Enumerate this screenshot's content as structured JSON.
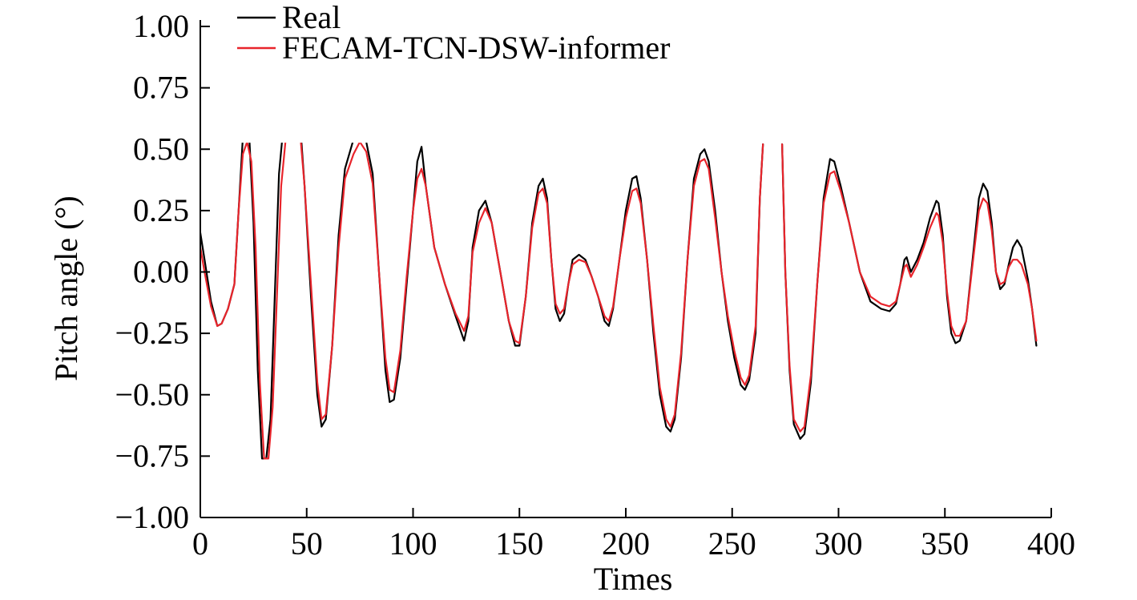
{
  "chart_data": {
    "type": "line",
    "title": "",
    "xlabel": "Times",
    "ylabel": "Pitch angle (°)",
    "xlim": [
      0,
      400
    ],
    "ylim": [
      -1.0,
      1.0
    ],
    "xticks": [
      0,
      50,
      100,
      150,
      200,
      250,
      300,
      350,
      400
    ],
    "xtick_labels": [
      "0",
      "50",
      "100",
      "150",
      "200",
      "250",
      "300",
      "350",
      "400"
    ],
    "yticks": [
      1.0,
      0.75,
      0.5,
      0.25,
      0.0,
      -0.25,
      -0.5,
      -0.75,
      -1.0
    ],
    "ytick_labels": [
      "1.00",
      "0.75",
      "0.50",
      "0.25",
      "0.00",
      "−0.25",
      "−0.50",
      "−0.75",
      "−1.00"
    ],
    "grid": false,
    "legend_position": "top-left",
    "series": [
      {
        "name": "Real",
        "color": "#000000",
        "points": [
          [
            0,
            0.16
          ],
          [
            2,
            0.05
          ],
          [
            5,
            -0.12
          ],
          [
            8,
            -0.22
          ],
          [
            10,
            -0.21
          ],
          [
            13,
            -0.15
          ],
          [
            16,
            -0.05
          ],
          [
            18,
            0.25
          ],
          [
            20,
            0.55
          ],
          [
            21,
            0.61
          ],
          [
            23,
            0.55
          ],
          [
            25,
            0.2
          ],
          [
            27,
            -0.4
          ],
          [
            29,
            -0.76
          ],
          [
            31,
            -0.76
          ],
          [
            33,
            -0.6
          ],
          [
            35,
            -0.1
          ],
          [
            37,
            0.4
          ],
          [
            40,
            0.68
          ],
          [
            43,
            0.8
          ],
          [
            44,
            0.81
          ],
          [
            46,
            0.72
          ],
          [
            49,
            0.35
          ],
          [
            52,
            -0.1
          ],
          [
            55,
            -0.5
          ],
          [
            57,
            -0.63
          ],
          [
            59,
            -0.6
          ],
          [
            62,
            -0.3
          ],
          [
            65,
            0.15
          ],
          [
            68,
            0.42
          ],
          [
            72,
            0.54
          ],
          [
            75,
            0.57
          ],
          [
            78,
            0.53
          ],
          [
            81,
            0.4
          ],
          [
            84,
            0.0
          ],
          [
            87,
            -0.4
          ],
          [
            89,
            -0.53
          ],
          [
            91,
            -0.52
          ],
          [
            94,
            -0.35
          ],
          [
            97,
            -0.05
          ],
          [
            100,
            0.25
          ],
          [
            102,
            0.45
          ],
          [
            104,
            0.51
          ],
          [
            106,
            0.35
          ],
          [
            110,
            0.1
          ],
          [
            115,
            -0.05
          ],
          [
            120,
            -0.18
          ],
          [
            124,
            -0.28
          ],
          [
            126,
            -0.2
          ],
          [
            128,
            0.1
          ],
          [
            131,
            0.25
          ],
          [
            134,
            0.29
          ],
          [
            137,
            0.2
          ],
          [
            141,
            0.0
          ],
          [
            145,
            -0.2
          ],
          [
            148,
            -0.3
          ],
          [
            150,
            -0.3
          ],
          [
            153,
            -0.1
          ],
          [
            156,
            0.2
          ],
          [
            159,
            0.35
          ],
          [
            161,
            0.38
          ],
          [
            163,
            0.3
          ],
          [
            165,
            0.05
          ],
          [
            167,
            -0.15
          ],
          [
            169,
            -0.2
          ],
          [
            171,
            -0.17
          ],
          [
            173,
            -0.05
          ],
          [
            175,
            0.05
          ],
          [
            178,
            0.07
          ],
          [
            181,
            0.05
          ],
          [
            184,
            -0.02
          ],
          [
            187,
            -0.1
          ],
          [
            190,
            -0.2
          ],
          [
            192,
            -0.22
          ],
          [
            194,
            -0.15
          ],
          [
            197,
            0.05
          ],
          [
            200,
            0.25
          ],
          [
            203,
            0.38
          ],
          [
            205,
            0.39
          ],
          [
            207,
            0.3
          ],
          [
            210,
            0.05
          ],
          [
            213,
            -0.25
          ],
          [
            216,
            -0.5
          ],
          [
            219,
            -0.63
          ],
          [
            221,
            -0.65
          ],
          [
            223,
            -0.6
          ],
          [
            226,
            -0.35
          ],
          [
            229,
            0.05
          ],
          [
            232,
            0.38
          ],
          [
            235,
            0.48
          ],
          [
            237,
            0.5
          ],
          [
            239,
            0.45
          ],
          [
            242,
            0.25
          ],
          [
            245,
            0.0
          ],
          [
            248,
            -0.2
          ],
          [
            251,
            -0.35
          ],
          [
            254,
            -0.46
          ],
          [
            256,
            -0.48
          ],
          [
            258,
            -0.44
          ],
          [
            261,
            -0.25
          ],
          [
            263,
            0.3
          ],
          [
            264.5,
            0.52
          ]
        ]
      },
      {
        "name": "",
        "color": "#000000",
        "points": [
          [
            273.5,
            0.52
          ],
          [
            275,
            0.0
          ],
          [
            277,
            -0.4
          ],
          [
            279,
            -0.62
          ],
          [
            282,
            -0.68
          ],
          [
            284,
            -0.66
          ],
          [
            287,
            -0.45
          ],
          [
            290,
            -0.05
          ],
          [
            293,
            0.3
          ],
          [
            296,
            0.46
          ],
          [
            298,
            0.45
          ],
          [
            301,
            0.35
          ],
          [
            305,
            0.2
          ],
          [
            310,
            0.0
          ],
          [
            315,
            -0.12
          ],
          [
            320,
            -0.15
          ],
          [
            324,
            -0.16
          ],
          [
            327,
            -0.13
          ],
          [
            329,
            -0.05
          ],
          [
            331,
            0.05
          ],
          [
            332,
            0.06
          ],
          [
            334,
            0.0
          ],
          [
            337,
            0.05
          ],
          [
            340,
            0.12
          ],
          [
            343,
            0.22
          ],
          [
            346,
            0.29
          ],
          [
            347,
            0.28
          ],
          [
            349,
            0.15
          ],
          [
            351,
            -0.1
          ],
          [
            353,
            -0.25
          ],
          [
            355,
            -0.29
          ],
          [
            357,
            -0.28
          ],
          [
            360,
            -0.2
          ],
          [
            363,
            0.05
          ],
          [
            366,
            0.3
          ],
          [
            368,
            0.36
          ],
          [
            370,
            0.33
          ],
          [
            372,
            0.2
          ],
          [
            374,
            0.0
          ],
          [
            376,
            -0.07
          ],
          [
            378,
            -0.05
          ],
          [
            380,
            0.03
          ],
          [
            382,
            0.1
          ],
          [
            384,
            0.13
          ],
          [
            386,
            0.1
          ],
          [
            389,
            -0.03
          ],
          [
            391,
            -0.15
          ],
          [
            393,
            -0.3
          ]
        ]
      },
      {
        "name": "FECAM-TCN-DSW-informer",
        "color": "#e8242b",
        "points": [
          [
            0,
            0.1
          ],
          [
            2,
            0.0
          ],
          [
            5,
            -0.14
          ],
          [
            8,
            -0.22
          ],
          [
            10,
            -0.21
          ],
          [
            13,
            -0.15
          ],
          [
            16,
            -0.05
          ],
          [
            18,
            0.25
          ],
          [
            20,
            0.48
          ],
          [
            22,
            0.53
          ],
          [
            24,
            0.45
          ],
          [
            26,
            0.1
          ],
          [
            28,
            -0.45
          ],
          [
            30,
            -0.76
          ],
          [
            32,
            -0.76
          ],
          [
            34,
            -0.55
          ],
          [
            36,
            -0.1
          ],
          [
            38,
            0.35
          ],
          [
            41,
            0.62
          ],
          [
            44,
            0.71
          ],
          [
            46,
            0.66
          ],
          [
            49,
            0.35
          ],
          [
            52,
            -0.05
          ],
          [
            55,
            -0.45
          ],
          [
            57,
            -0.6
          ],
          [
            59,
            -0.58
          ],
          [
            62,
            -0.3
          ],
          [
            65,
            0.1
          ],
          [
            68,
            0.38
          ],
          [
            72,
            0.48
          ],
          [
            75,
            0.53
          ],
          [
            78,
            0.49
          ],
          [
            81,
            0.36
          ],
          [
            84,
            0.0
          ],
          [
            87,
            -0.35
          ],
          [
            89,
            -0.48
          ],
          [
            91,
            -0.49
          ],
          [
            94,
            -0.32
          ],
          [
            97,
            -0.02
          ],
          [
            100,
            0.25
          ],
          [
            102,
            0.38
          ],
          [
            104,
            0.42
          ],
          [
            106,
            0.35
          ],
          [
            110,
            0.1
          ],
          [
            115,
            -0.05
          ],
          [
            120,
            -0.17
          ],
          [
            124,
            -0.24
          ],
          [
            126,
            -0.18
          ],
          [
            128,
            0.08
          ],
          [
            131,
            0.2
          ],
          [
            134,
            0.26
          ],
          [
            137,
            0.2
          ],
          [
            141,
            0.0
          ],
          [
            145,
            -0.2
          ],
          [
            148,
            -0.28
          ],
          [
            150,
            -0.29
          ],
          [
            153,
            -0.1
          ],
          [
            156,
            0.18
          ],
          [
            159,
            0.32
          ],
          [
            161,
            0.34
          ],
          [
            163,
            0.28
          ],
          [
            165,
            0.05
          ],
          [
            167,
            -0.13
          ],
          [
            169,
            -0.17
          ],
          [
            171,
            -0.15
          ],
          [
            173,
            -0.05
          ],
          [
            175,
            0.03
          ],
          [
            178,
            0.05
          ],
          [
            181,
            0.04
          ],
          [
            184,
            -0.02
          ],
          [
            187,
            -0.1
          ],
          [
            190,
            -0.18
          ],
          [
            192,
            -0.2
          ],
          [
            194,
            -0.14
          ],
          [
            197,
            0.05
          ],
          [
            200,
            0.22
          ],
          [
            203,
            0.33
          ],
          [
            205,
            0.34
          ],
          [
            207,
            0.28
          ],
          [
            210,
            0.05
          ],
          [
            213,
            -0.22
          ],
          [
            216,
            -0.47
          ],
          [
            219,
            -0.6
          ],
          [
            221,
            -0.63
          ],
          [
            223,
            -0.58
          ],
          [
            226,
            -0.33
          ],
          [
            229,
            0.05
          ],
          [
            232,
            0.35
          ],
          [
            235,
            0.45
          ],
          [
            237,
            0.46
          ],
          [
            239,
            0.42
          ],
          [
            242,
            0.22
          ],
          [
            245,
            0.0
          ],
          [
            248,
            -0.18
          ],
          [
            251,
            -0.32
          ],
          [
            254,
            -0.43
          ],
          [
            256,
            -0.46
          ],
          [
            258,
            -0.42
          ],
          [
            261,
            -0.22
          ],
          [
            263,
            0.3
          ],
          [
            264.5,
            0.52
          ]
        ]
      },
      {
        "name": "",
        "color": "#e8242b",
        "points": [
          [
            273.5,
            0.52
          ],
          [
            275,
            0.0
          ],
          [
            277,
            -0.38
          ],
          [
            279,
            -0.6
          ],
          [
            282,
            -0.65
          ],
          [
            284,
            -0.63
          ],
          [
            287,
            -0.42
          ],
          [
            290,
            -0.05
          ],
          [
            293,
            0.28
          ],
          [
            296,
            0.4
          ],
          [
            298,
            0.41
          ],
          [
            301,
            0.33
          ],
          [
            305,
            0.2
          ],
          [
            310,
            0.0
          ],
          [
            315,
            -0.1
          ],
          [
            320,
            -0.13
          ],
          [
            324,
            -0.14
          ],
          [
            327,
            -0.12
          ],
          [
            329,
            -0.05
          ],
          [
            331,
            0.02
          ],
          [
            332,
            0.03
          ],
          [
            334,
            -0.02
          ],
          [
            337,
            0.03
          ],
          [
            340,
            0.1
          ],
          [
            343,
            0.18
          ],
          [
            346,
            0.24
          ],
          [
            347,
            0.23
          ],
          [
            349,
            0.12
          ],
          [
            351,
            -0.08
          ],
          [
            353,
            -0.22
          ],
          [
            355,
            -0.26
          ],
          [
            357,
            -0.26
          ],
          [
            360,
            -0.2
          ],
          [
            363,
            0.03
          ],
          [
            366,
            0.25
          ],
          [
            368,
            0.3
          ],
          [
            370,
            0.28
          ],
          [
            372,
            0.17
          ],
          [
            374,
            0.0
          ],
          [
            376,
            -0.05
          ],
          [
            378,
            -0.04
          ],
          [
            380,
            0.02
          ],
          [
            382,
            0.05
          ],
          [
            384,
            0.05
          ],
          [
            386,
            0.03
          ],
          [
            389,
            -0.05
          ],
          [
            391,
            -0.15
          ],
          [
            393,
            -0.28
          ]
        ]
      }
    ]
  }
}
